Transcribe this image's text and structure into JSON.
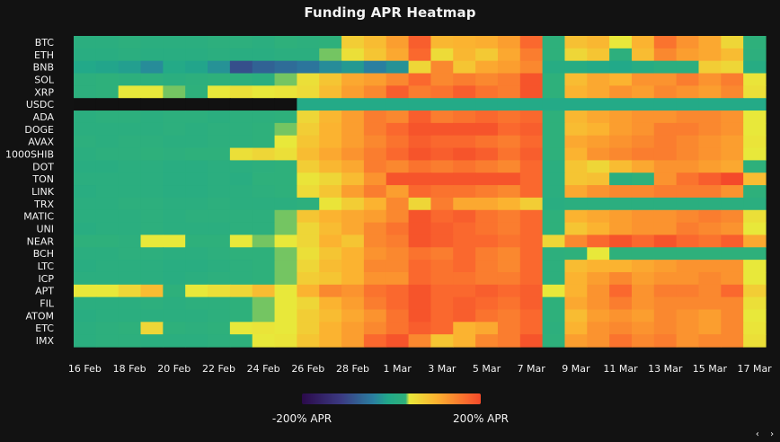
{
  "chart_data": {
    "type": "heatmap",
    "title": "Funding APR Heatmap",
    "rows": [
      "BTC",
      "ETH",
      "BNB",
      "SOL",
      "XRP",
      "USDC",
      "ADA",
      "DOGE",
      "AVAX",
      "1000SHIB",
      "DOT",
      "TON",
      "LINK",
      "TRX",
      "MATIC",
      "UNI",
      "NEAR",
      "BCH",
      "LTC",
      "ICP",
      "APT",
      "FIL",
      "ATOM",
      "ETC",
      "IMX"
    ],
    "x_tick_labels": [
      "16 Feb",
      "18 Feb",
      "20 Feb",
      "22 Feb",
      "24 Feb",
      "26 Feb",
      "28 Feb",
      "1 Mar",
      "3 Mar",
      "5 Mar",
      "7 Mar",
      "9 Mar",
      "11 Mar",
      "13 Mar",
      "15 Mar",
      "17 Mar"
    ],
    "n_columns": 31,
    "legend": {
      "min_label": "-200% APR",
      "max_label": "200% APR",
      "min": -200,
      "max": 200,
      "colors": [
        "#2b0a4a",
        "#3b3a82",
        "#2a7fa0",
        "#21a88a",
        "#2fb07a",
        "#e8e83a",
        "#fbb330",
        "#fa6a2e",
        "#f44a2a"
      ]
    },
    "values": [
      [
        20,
        20,
        25,
        20,
        20,
        20,
        25,
        25,
        20,
        30,
        25,
        30,
        70,
        90,
        120,
        180,
        95,
        100,
        105,
        120,
        170,
        30,
        85,
        95,
        40,
        100,
        160,
        130,
        110,
        60,
        30
      ],
      [
        15,
        15,
        20,
        15,
        15,
        15,
        20,
        15,
        15,
        20,
        20,
        35,
        50,
        80,
        110,
        170,
        55,
        95,
        75,
        110,
        150,
        30,
        60,
        80,
        25,
        90,
        140,
        120,
        110,
        90,
        25
      ],
      [
        -5,
        -10,
        -15,
        -30,
        0,
        -10,
        -25,
        -90,
        -70,
        -60,
        -50,
        -30,
        -20,
        -40,
        -25,
        60,
        140,
        80,
        110,
        120,
        140,
        10,
        10,
        0,
        -5,
        10,
        20,
        20,
        70,
        60,
        10
      ],
      [
        25,
        30,
        25,
        25,
        20,
        25,
        30,
        25,
        20,
        35,
        50,
        80,
        110,
        120,
        140,
        170,
        140,
        150,
        140,
        150,
        190,
        30,
        90,
        110,
        100,
        130,
        130,
        150,
        130,
        150,
        45
      ],
      [
        25,
        30,
        40,
        40,
        35,
        30,
        40,
        50,
        40,
        45,
        55,
        90,
        120,
        140,
        180,
        150,
        160,
        180,
        160,
        150,
        190,
        30,
        100,
        110,
        130,
        120,
        140,
        130,
        120,
        140,
        50
      ],
      [
        -200,
        -200,
        -200,
        -200,
        -200,
        -200,
        -200,
        -200,
        -200,
        -200,
        0,
        0,
        0,
        0,
        0,
        0,
        0,
        0,
        0,
        0,
        0,
        0,
        0,
        0,
        0,
        0,
        0,
        0,
        0,
        0,
        0
      ],
      [
        20,
        25,
        25,
        20,
        25,
        25,
        20,
        25,
        25,
        30,
        60,
        95,
        120,
        150,
        140,
        180,
        150,
        160,
        170,
        160,
        170,
        30,
        95,
        110,
        120,
        130,
        130,
        140,
        140,
        130,
        40
      ],
      [
        20,
        20,
        20,
        20,
        25,
        20,
        25,
        25,
        30,
        35,
        70,
        100,
        120,
        150,
        170,
        190,
        190,
        190,
        190,
        170,
        180,
        30,
        90,
        100,
        120,
        130,
        150,
        150,
        140,
        130,
        40
      ],
      [
        25,
        20,
        25,
        25,
        20,
        20,
        25,
        25,
        30,
        40,
        80,
        100,
        120,
        140,
        160,
        180,
        170,
        170,
        160,
        150,
        170,
        30,
        110,
        120,
        130,
        140,
        150,
        140,
        130,
        120,
        45
      ],
      [
        20,
        25,
        25,
        30,
        25,
        30,
        30,
        50,
        60,
        50,
        90,
        110,
        130,
        150,
        170,
        190,
        180,
        190,
        180,
        160,
        180,
        30,
        100,
        130,
        140,
        150,
        150,
        140,
        130,
        120,
        40
      ],
      [
        15,
        15,
        20,
        20,
        15,
        15,
        20,
        20,
        25,
        30,
        70,
        95,
        110,
        150,
        140,
        160,
        150,
        160,
        150,
        140,
        170,
        20,
        80,
        60,
        90,
        110,
        130,
        130,
        120,
        110,
        30
      ],
      [
        20,
        20,
        20,
        20,
        15,
        15,
        20,
        15,
        30,
        30,
        45,
        60,
        90,
        130,
        190,
        190,
        190,
        190,
        190,
        190,
        170,
        20,
        80,
        85,
        20,
        30,
        130,
        160,
        180,
        200,
        90
      ],
      [
        15,
        20,
        20,
        20,
        15,
        15,
        20,
        20,
        25,
        30,
        55,
        80,
        120,
        150,
        120,
        170,
        160,
        160,
        150,
        140,
        170,
        20,
        110,
        130,
        140,
        140,
        150,
        150,
        150,
        130,
        30
      ],
      [
        20,
        20,
        25,
        25,
        20,
        20,
        25,
        20,
        20,
        20,
        25,
        45,
        70,
        100,
        140,
        60,
        150,
        110,
        110,
        100,
        70,
        15,
        20,
        20,
        20,
        20,
        20,
        20,
        20,
        20,
        20
      ],
      [
        20,
        20,
        20,
        25,
        20,
        25,
        25,
        25,
        25,
        35,
        80,
        100,
        110,
        120,
        140,
        190,
        170,
        180,
        160,
        150,
        170,
        30,
        100,
        110,
        120,
        130,
        130,
        140,
        150,
        140,
        50
      ],
      [
        15,
        20,
        20,
        25,
        20,
        20,
        20,
        25,
        25,
        35,
        60,
        90,
        110,
        140,
        160,
        190,
        180,
        170,
        160,
        150,
        170,
        30,
        80,
        100,
        120,
        130,
        130,
        150,
        140,
        130,
        40
      ],
      [
        30,
        30,
        25,
        40,
        40,
        30,
        30,
        40,
        35,
        40,
        60,
        100,
        80,
        140,
        150,
        190,
        180,
        170,
        170,
        160,
        170,
        60,
        140,
        170,
        190,
        170,
        190,
        170,
        160,
        180,
        110
      ],
      [
        20,
        20,
        25,
        25,
        20,
        20,
        25,
        30,
        30,
        35,
        50,
        80,
        100,
        130,
        140,
        160,
        150,
        170,
        150,
        140,
        170,
        25,
        30,
        40,
        30,
        30,
        30,
        30,
        30,
        30,
        30
      ],
      [
        15,
        20,
        20,
        20,
        15,
        15,
        20,
        25,
        30,
        35,
        60,
        90,
        100,
        140,
        140,
        170,
        160,
        170,
        150,
        140,
        170,
        25,
        90,
        100,
        100,
        110,
        120,
        130,
        130,
        130,
        40
      ],
      [
        20,
        20,
        20,
        20,
        15,
        20,
        25,
        25,
        30,
        35,
        70,
        80,
        100,
        130,
        130,
        170,
        160,
        160,
        150,
        150,
        170,
        25,
        100,
        120,
        140,
        120,
        130,
        130,
        140,
        130,
        40
      ],
      [
        40,
        40,
        60,
        90,
        30,
        40,
        50,
        60,
        90,
        40,
        100,
        140,
        130,
        160,
        170,
        190,
        170,
        170,
        180,
        170,
        180,
        40,
        100,
        130,
        170,
        130,
        150,
        150,
        140,
        170,
        70
      ],
      [
        20,
        20,
        20,
        25,
        20,
        25,
        25,
        30,
        35,
        40,
        60,
        100,
        120,
        150,
        170,
        190,
        170,
        180,
        170,
        160,
        180,
        30,
        110,
        130,
        150,
        130,
        140,
        140,
        140,
        140,
        50
      ],
      [
        15,
        20,
        20,
        20,
        20,
        20,
        25,
        30,
        35,
        40,
        70,
        90,
        110,
        130,
        160,
        190,
        170,
        180,
        160,
        150,
        170,
        30,
        90,
        120,
        130,
        120,
        140,
        130,
        120,
        140,
        40
      ],
      [
        20,
        25,
        30,
        60,
        30,
        25,
        30,
        40,
        45,
        40,
        70,
        100,
        120,
        140,
        160,
        180,
        170,
        100,
        110,
        150,
        170,
        25,
        100,
        130,
        140,
        130,
        140,
        130,
        120,
        140,
        45
      ],
      [
        20,
        25,
        25,
        20,
        20,
        20,
        25,
        30,
        40,
        45,
        80,
        100,
        120,
        170,
        190,
        140,
        80,
        100,
        140,
        150,
        190,
        30,
        120,
        130,
        160,
        140,
        150,
        130,
        140,
        140,
        50
      ]
    ]
  }
}
